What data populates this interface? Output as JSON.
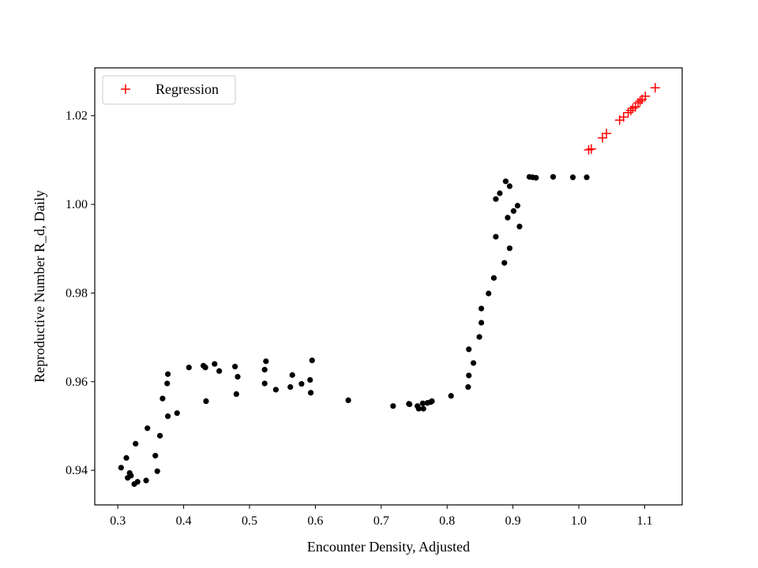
{
  "chart_data": {
    "type": "scatter",
    "xlabel": "Encounter Density, Adjusted",
    "ylabel": "Reproductive Number R_d, Daily",
    "xlim": [
      0.265,
      1.157
    ],
    "ylim": [
      0.9322,
      1.0308
    ],
    "xticks": [
      0.3,
      0.4,
      0.5,
      0.6,
      0.7,
      0.8,
      0.9,
      1.0,
      1.1
    ],
    "xtick_labels": [
      "0.3",
      "0.4",
      "0.5",
      "0.6",
      "0.7",
      "0.8",
      "0.9",
      "1.0",
      "1.1"
    ],
    "yticks": [
      0.94,
      0.96,
      0.98,
      1.0,
      1.02
    ],
    "ytick_labels": [
      "0.94",
      "0.96",
      "0.98",
      "1.00",
      "1.02"
    ],
    "grid": false,
    "legend_position": "top-left",
    "series": [
      {
        "marker": "dot",
        "color": "#000000",
        "points": [
          [
            0.305,
            0.9406
          ],
          [
            0.313,
            0.9428
          ],
          [
            0.315,
            0.9383
          ],
          [
            0.318,
            0.9394
          ],
          [
            0.32,
            0.9388
          ],
          [
            0.325,
            0.9369
          ],
          [
            0.327,
            0.946
          ],
          [
            0.33,
            0.9374
          ],
          [
            0.343,
            0.9377
          ],
          [
            0.345,
            0.9495
          ],
          [
            0.357,
            0.9433
          ],
          [
            0.36,
            0.9398
          ],
          [
            0.364,
            0.9478
          ],
          [
            0.368,
            0.9562
          ],
          [
            0.375,
            0.9596
          ],
          [
            0.376,
            0.9617
          ],
          [
            0.376,
            0.9522
          ],
          [
            0.39,
            0.9529
          ],
          [
            0.408,
            0.9632
          ],
          [
            0.43,
            0.9636
          ],
          [
            0.433,
            0.9632
          ],
          [
            0.434,
            0.9556
          ],
          [
            0.447,
            0.964
          ],
          [
            0.454,
            0.9624
          ],
          [
            0.478,
            0.9634
          ],
          [
            0.48,
            0.9572
          ],
          [
            0.482,
            0.9611
          ],
          [
            0.523,
            0.9627
          ],
          [
            0.525,
            0.9646
          ],
          [
            0.523,
            0.9596
          ],
          [
            0.54,
            0.9582
          ],
          [
            0.565,
            0.9615
          ],
          [
            0.562,
            0.9588
          ],
          [
            0.579,
            0.9595
          ],
          [
            0.592,
            0.9604
          ],
          [
            0.595,
            0.9648
          ],
          [
            0.593,
            0.9575
          ],
          [
            0.65,
            0.9558
          ],
          [
            0.718,
            0.9545
          ],
          [
            0.742,
            0.955
          ],
          [
            0.743,
            0.9549
          ],
          [
            0.755,
            0.9545
          ],
          [
            0.757,
            0.9539
          ],
          [
            0.763,
            0.9551
          ],
          [
            0.764,
            0.9539
          ],
          [
            0.77,
            0.9552
          ],
          [
            0.775,
            0.9554
          ],
          [
            0.777,
            0.9556
          ],
          [
            0.806,
            0.9568
          ],
          [
            0.832,
            0.9588
          ],
          [
            0.833,
            0.9614
          ],
          [
            0.833,
            0.9673
          ],
          [
            0.84,
            0.9642
          ],
          [
            0.849,
            0.9701
          ],
          [
            0.852,
            0.9733
          ],
          [
            0.852,
            0.9765
          ],
          [
            0.863,
            0.9799
          ],
          [
            0.871,
            0.9834
          ],
          [
            0.874,
            0.9927
          ],
          [
            0.874,
            1.0012
          ],
          [
            0.88,
            1.0025
          ],
          [
            0.887,
            0.9868
          ],
          [
            0.889,
            1.0052
          ],
          [
            0.892,
            0.997
          ],
          [
            0.895,
            1.0041
          ],
          [
            0.895,
            0.9901
          ],
          [
            0.901,
            0.9985
          ],
          [
            0.907,
            0.9997
          ],
          [
            0.91,
            0.995
          ],
          [
            0.925,
            1.0062
          ],
          [
            0.93,
            1.0061
          ],
          [
            0.935,
            1.006
          ],
          [
            0.961,
            1.0062
          ],
          [
            0.991,
            1.0061
          ],
          [
            1.012,
            1.0061
          ]
        ]
      },
      {
        "name": "Regression",
        "marker": "plus",
        "color": "#ff0000",
        "points": [
          [
            1.015,
            1.0123
          ],
          [
            1.019,
            1.0125
          ],
          [
            1.036,
            1.015
          ],
          [
            1.042,
            1.016
          ],
          [
            1.062,
            1.019
          ],
          [
            1.068,
            1.0197
          ],
          [
            1.075,
            1.0207
          ],
          [
            1.079,
            1.0212
          ],
          [
            1.082,
            1.0217
          ],
          [
            1.086,
            1.022
          ],
          [
            1.09,
            1.0229
          ],
          [
            1.093,
            1.0233
          ],
          [
            1.096,
            1.0237
          ],
          [
            1.101,
            1.0244
          ],
          [
            1.116,
            1.0263
          ]
        ]
      }
    ]
  }
}
